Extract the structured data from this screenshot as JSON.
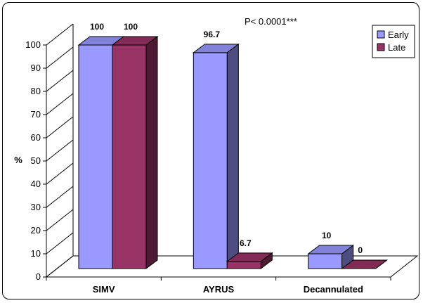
{
  "chart_data": {
    "type": "bar",
    "categories": [
      "SIMV",
      "AYRUS",
      "Decannulated"
    ],
    "series": [
      {
        "name": "Early",
        "values": [
          100,
          96.7,
          10
        ],
        "color": "#9999ff"
      },
      {
        "name": "Late",
        "values": [
          100,
          6.7,
          0
        ],
        "color": "#993366"
      }
    ],
    "data_labels": [
      [
        "100",
        "96.7",
        "10"
      ],
      [
        "100",
        "6.7",
        "0"
      ]
    ],
    "ylabel": "%",
    "ylim": [
      0,
      100
    ],
    "yticks": [
      0,
      10,
      20,
      30,
      40,
      50,
      60,
      70,
      80,
      90,
      100
    ],
    "annotation": "P< 0.0001***",
    "legend_position": "top-right",
    "grid": false,
    "style": "3d-clustered"
  }
}
